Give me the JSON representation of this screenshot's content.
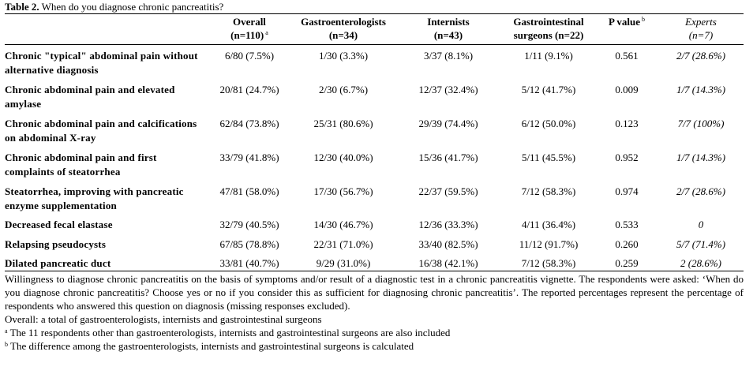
{
  "caption": {
    "label": "Table 2.",
    "text": " When do you diagnose chronic pancreatitis?"
  },
  "table": {
    "headers": [
      {
        "line1": "",
        "line2": "",
        "sup": ""
      },
      {
        "line1": "Overall",
        "line2": "(n=110)",
        "sup": "a"
      },
      {
        "line1": "Gastroenterologists",
        "line2": "(n=34)",
        "sup": ""
      },
      {
        "line1": "Internists",
        "line2": "(n=43)",
        "sup": ""
      },
      {
        "line1": "Gastrointestinal",
        "line2": "surgeons (n=22)",
        "sup": ""
      },
      {
        "line1": "P value",
        "line2": "",
        "sup": "b"
      },
      {
        "line1": "Experts",
        "line2": "(n=7)",
        "sup": ""
      }
    ],
    "rows": [
      {
        "label": "Chronic \"typical\" abdominal pain without alternative diagnosis",
        "overall": "6/80 (7.5%)",
        "gastro": "1/30 (3.3%)",
        "internists": "3/37 (8.1%)",
        "surgeons": "1/11 (9.1%)",
        "p": "0.561",
        "experts": "2/7 (28.6%)"
      },
      {
        "label": "Chronic abdominal pain and elevated amylase",
        "overall": "20/81 (24.7%)",
        "gastro": "2/30 (6.7%)",
        "internists": "12/37 (32.4%)",
        "surgeons": "5/12 (41.7%)",
        "p": "0.009",
        "experts": "1/7 (14.3%)"
      },
      {
        "label": "Chronic abdominal pain and calcifications on abdominal X-ray",
        "overall": "62/84 (73.8%)",
        "gastro": "25/31 (80.6%)",
        "internists": "29/39 (74.4%)",
        "surgeons": "6/12 (50.0%)",
        "p": "0.123",
        "experts": "7/7 (100%)"
      },
      {
        "label": "Chronic abdominal pain and first complaints of steatorrhea",
        "overall": "33/79 (41.8%)",
        "gastro": "12/30 (40.0%)",
        "internists": "15/36 (41.7%)",
        "surgeons": "5/11 (45.5%)",
        "p": "0.952",
        "experts": "1/7 (14.3%)"
      },
      {
        "label": "Steatorrhea, improving with pancreatic enzyme supplementation",
        "overall": "47/81 (58.0%)",
        "gastro": "17/30 (56.7%)",
        "internists": "22/37 (59.5%)",
        "surgeons": "7/12 (58.3%)",
        "p": "0.974",
        "experts": "2/7 (28.6%)"
      },
      {
        "label": "Decreased fecal elastase",
        "overall": "32/79 (40.5%)",
        "gastro": "14/30 (46.7%)",
        "internists": "12/36 (33.3%)",
        "surgeons": "4/11 (36.4%)",
        "p": "0.533",
        "experts": "0"
      },
      {
        "label": "Relapsing pseudocysts",
        "overall": "67/85 (78.8%)",
        "gastro": "22/31 (71.0%)",
        "internists": "33/40 (82.5%)",
        "surgeons": "11/12 (91.7%)",
        "p": "0.260",
        "experts": "5/7 (71.4%)"
      },
      {
        "label": "Dilated pancreatic duct",
        "overall": "33/81 (40.7%)",
        "gastro": "9/29 (31.0%)",
        "internists": "16/38 (42.1%)",
        "surgeons": "7/12 (58.3%)",
        "p": "0.259",
        "experts": "2 (28.6%)"
      }
    ]
  },
  "notes": {
    "description": "Willingness to diagnose chronic pancreatitis on the basis of symptoms and/or result of a diagnostic test in a chronic pancreatitis vignette. The respondents were asked: ‘When do you diagnose chronic pancreatitis? Choose yes or no if you consider this as sufficient for diagnosing chronic pancreatitis’. The reported percentages represent the percentage of respondents who answered this question on diagnosis (missing responses excluded).",
    "overall": "Overall: a total of gastroenterologists, internists and gastrointestinal surgeons",
    "footnote_a_mark": "a",
    "footnote_a": " The 11 respondents other than gastroenterologists, internists and gastrointestinal surgeons are also included",
    "footnote_b_mark": "b",
    "footnote_b": " The difference among the gastroenterologists, internists and gastrointestinal surgeons is calculated"
  }
}
